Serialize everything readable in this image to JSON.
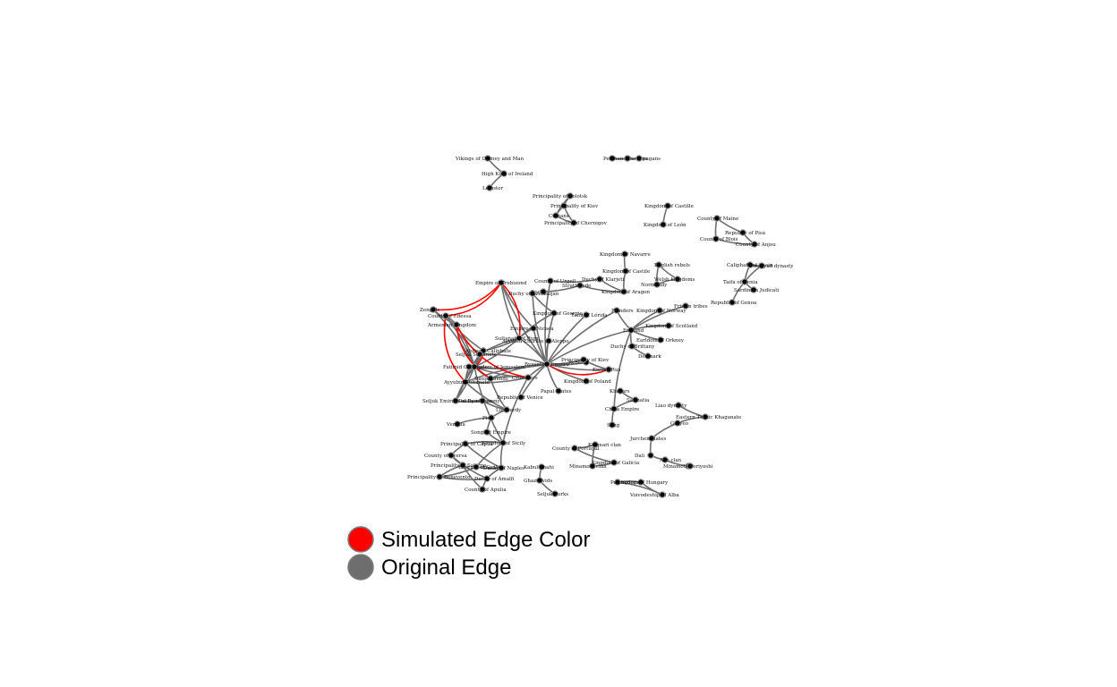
{
  "legend": {
    "simulated_label": "Simulated Edge Color",
    "original_label": "Original Edge",
    "simulated_color": "#ff0000",
    "original_color": "#6e6e6e"
  },
  "colors": {
    "node_fill": "#000000",
    "node_ring": "#9a9a9a",
    "edge_original": "#6e6e6e",
    "edge_simulated": "#ff0000"
  },
  "nodes": [
    {
      "label": "Vikings of Orkney and Man"
    },
    {
      "label": "High King of Ireland"
    },
    {
      "label": "Leinster"
    },
    {
      "label": "Petchenegs"
    },
    {
      "label": "Cumans"
    },
    {
      "label": "pagans"
    },
    {
      "label": "Principality of Polotsk"
    },
    {
      "label": "Principality of Kiev"
    },
    {
      "label": "Cumans"
    },
    {
      "label": "Principality of Chernigov"
    },
    {
      "label": "Kingdom of Castille"
    },
    {
      "label": "Kingdom of León"
    },
    {
      "label": "County of Maine"
    },
    {
      "label": "Republic of Pisa"
    },
    {
      "label": "County of Blois"
    },
    {
      "label": "County of Anjou"
    },
    {
      "label": "Caliphate of Spain"
    },
    {
      "label": "Umayyad dynasty"
    },
    {
      "label": "Taifa of Denia"
    },
    {
      "label": "Sardinian Judicati"
    },
    {
      "label": "Republic of Genoa"
    },
    {
      "label": "Kingdom of Navarre"
    },
    {
      "label": "Kingdom of Castile"
    },
    {
      "label": "English rebels"
    },
    {
      "label": "Welsh kingdoms"
    },
    {
      "label": "Normandy"
    },
    {
      "label": "Empire of Trebizond"
    },
    {
      "label": "County of Urgell"
    },
    {
      "label": "Duchy of Klarjeti"
    },
    {
      "label": "Duchy"
    },
    {
      "label": "Strathclyde"
    },
    {
      "label": "Kingdom of Aragon"
    },
    {
      "label": "Duchy of Azerbaijan"
    },
    {
      "label": "Taifa of Lérida"
    },
    {
      "label": "Kingdom of Georgia"
    },
    {
      "label": "Empire of Nicaea"
    },
    {
      "label": "Ayyubid Emirate of Aleppo"
    },
    {
      "label": "Flanders"
    },
    {
      "label": "Kingdom of Norway"
    },
    {
      "label": "Frisian tribes"
    },
    {
      "label": "Kingdom of Scotland"
    },
    {
      "label": "England"
    },
    {
      "label": "Earldom of Orkney"
    },
    {
      "label": "Duchy of Brittany"
    },
    {
      "label": "Denmark"
    },
    {
      "label": "Kingdom of Jerusalem"
    },
    {
      "label": "Byzantine Empire"
    },
    {
      "label": "Rebels"
    },
    {
      "label": "Kievan Rus"
    },
    {
      "label": "Principality of Kiev"
    },
    {
      "label": "Kingdom of Poland"
    },
    {
      "label": "Papal States"
    },
    {
      "label": "Republic of Venice"
    },
    {
      "label": "Seljuk Emirate of Damascus"
    },
    {
      "label": "Fatimid Caliphate"
    },
    {
      "label": "Armenian Kingdom"
    },
    {
      "label": "County of Edessa"
    },
    {
      "label": "Abbasid Caliphate"
    },
    {
      "label": "Sultanate of Rum"
    },
    {
      "label": "Zengids"
    },
    {
      "label": "Seljuk Sultanate"
    },
    {
      "label": "Ayyubid Sultanate"
    },
    {
      "label": "Crusaders"
    },
    {
      "label": "Danishmends"
    },
    {
      "label": "Duchy of Saxony"
    },
    {
      "label": "Lombardy"
    },
    {
      "label": "Pisa"
    },
    {
      "label": "Venetia"
    },
    {
      "label": "Songhai Empire"
    },
    {
      "label": "Kingdom of Sicily"
    },
    {
      "label": "Principality of Capua"
    },
    {
      "label": "County of Aversa"
    },
    {
      "label": "Principality of Salerno"
    },
    {
      "label": "Principality of Benevento"
    },
    {
      "label": "Emirate of Sicily"
    },
    {
      "label": "Duchy of Naples"
    },
    {
      "label": "Duchy of Amalfi"
    },
    {
      "label": "County of Apulia"
    },
    {
      "label": "Kabul Shahi"
    },
    {
      "label": "Ghaznavids"
    },
    {
      "label": "Seljuk Turks"
    },
    {
      "label": "County of Portugal"
    },
    {
      "label": "Kiyonari clan"
    },
    {
      "label": "Minamoto clan"
    },
    {
      "label": "Kingdom of Galicia"
    },
    {
      "label": "Khazars"
    },
    {
      "label": "Sarmatia"
    },
    {
      "label": "Chola Empire"
    },
    {
      "label": "Song"
    },
    {
      "label": "Liao dynasty"
    },
    {
      "label": "Eastern Turkic Khaganate"
    },
    {
      "label": "Goryeo"
    },
    {
      "label": "Jurchen states"
    },
    {
      "label": "Dali"
    },
    {
      "label": "Abe clan"
    },
    {
      "label": "Minamoto"
    },
    {
      "label": "Yoriyoshi"
    },
    {
      "label": "Kingdom of Hungary"
    },
    {
      "label": "Voivodeship of Alba"
    },
    {
      "label": "Petchenegs"
    }
  ]
}
